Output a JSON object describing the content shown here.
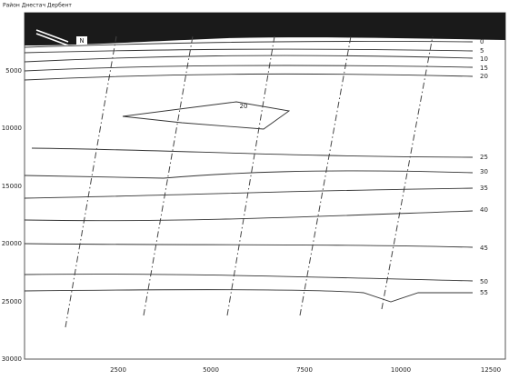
{
  "title": "Район Днестач Дербент",
  "y_ticks": [
    "5000",
    "10000",
    "15000",
    "20000",
    "25000",
    "30000"
  ],
  "x_ticks": [
    "2500",
    "5000",
    "7500",
    "10000",
    "12500"
  ],
  "north_label": "N",
  "contours": [
    {
      "label": "0"
    },
    {
      "label": "5"
    },
    {
      "label": "10"
    },
    {
      "label": "15"
    },
    {
      "label": "20"
    },
    {
      "label": "25"
    },
    {
      "label": "30"
    },
    {
      "label": "35"
    },
    {
      "label": "40"
    },
    {
      "label": "45"
    },
    {
      "label": "50"
    },
    {
      "label": "55"
    }
  ],
  "inner_label": "20"
}
